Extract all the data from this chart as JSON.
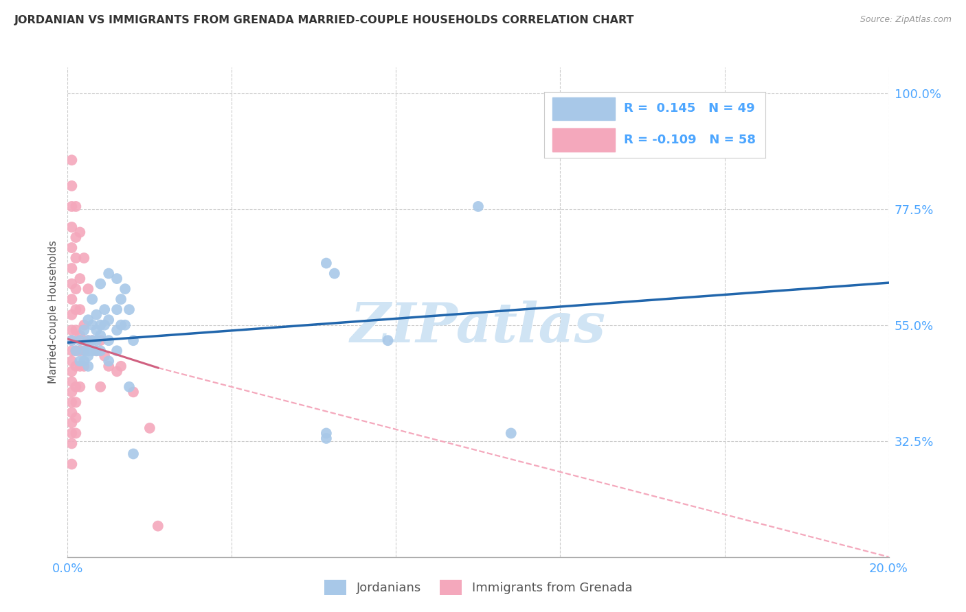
{
  "title": "JORDANIAN VS IMMIGRANTS FROM GRENADA MARRIED-COUPLE HOUSEHOLDS CORRELATION CHART",
  "source": "Source: ZipAtlas.com",
  "ylabel": "Married-couple Households",
  "xlim": [
    0.0,
    0.2
  ],
  "ylim": [
    0.1,
    1.05
  ],
  "yticks": [
    0.325,
    0.55,
    0.775,
    1.0
  ],
  "ytick_labels": [
    "32.5%",
    "55.0%",
    "77.5%",
    "100.0%"
  ],
  "xticks": [
    0.0,
    0.04,
    0.08,
    0.12,
    0.16,
    0.2
  ],
  "blue_R": 0.145,
  "blue_N": 49,
  "pink_R": -0.109,
  "pink_N": 58,
  "blue_color": "#a8c8e8",
  "pink_color": "#f4a8bc",
  "blue_line_color": "#2166ac",
  "pink_solid_color": "#d06080",
  "pink_dash_color": "#f4a8bc",
  "watermark": "ZIPatlas",
  "watermark_color": "#d0e4f4",
  "background_color": "#ffffff",
  "grid_color": "#cccccc",
  "title_color": "#333333",
  "axis_label_color": "#4da6ff",
  "legend_text_color": "#4da6ff",
  "legend_label_color": "#333333",
  "blue_scatter": [
    [
      0.001,
      0.52
    ],
    [
      0.002,
      0.5
    ],
    [
      0.003,
      0.52
    ],
    [
      0.003,
      0.48
    ],
    [
      0.004,
      0.54
    ],
    [
      0.004,
      0.5
    ],
    [
      0.004,
      0.48
    ],
    [
      0.005,
      0.56
    ],
    [
      0.005,
      0.52
    ],
    [
      0.005,
      0.5
    ],
    [
      0.005,
      0.49
    ],
    [
      0.005,
      0.47
    ],
    [
      0.006,
      0.6
    ],
    [
      0.006,
      0.55
    ],
    [
      0.006,
      0.52
    ],
    [
      0.006,
      0.5
    ],
    [
      0.007,
      0.57
    ],
    [
      0.007,
      0.54
    ],
    [
      0.007,
      0.52
    ],
    [
      0.007,
      0.5
    ],
    [
      0.008,
      0.63
    ],
    [
      0.008,
      0.55
    ],
    [
      0.008,
      0.53
    ],
    [
      0.008,
      0.5
    ],
    [
      0.009,
      0.58
    ],
    [
      0.009,
      0.55
    ],
    [
      0.01,
      0.65
    ],
    [
      0.01,
      0.56
    ],
    [
      0.01,
      0.52
    ],
    [
      0.01,
      0.48
    ],
    [
      0.012,
      0.64
    ],
    [
      0.012,
      0.58
    ],
    [
      0.012,
      0.54
    ],
    [
      0.012,
      0.5
    ],
    [
      0.013,
      0.6
    ],
    [
      0.013,
      0.55
    ],
    [
      0.014,
      0.62
    ],
    [
      0.014,
      0.55
    ],
    [
      0.015,
      0.58
    ],
    [
      0.015,
      0.43
    ],
    [
      0.016,
      0.52
    ],
    [
      0.016,
      0.3
    ],
    [
      0.063,
      0.67
    ],
    [
      0.063,
      0.34
    ],
    [
      0.063,
      0.33
    ],
    [
      0.065,
      0.65
    ],
    [
      0.1,
      0.78
    ],
    [
      0.108,
      0.34
    ],
    [
      0.078,
      0.52
    ]
  ],
  "pink_scatter": [
    [
      0.001,
      0.87
    ],
    [
      0.001,
      0.82
    ],
    [
      0.001,
      0.78
    ],
    [
      0.001,
      0.74
    ],
    [
      0.001,
      0.7
    ],
    [
      0.001,
      0.66
    ],
    [
      0.001,
      0.63
    ],
    [
      0.001,
      0.6
    ],
    [
      0.001,
      0.57
    ],
    [
      0.001,
      0.54
    ],
    [
      0.001,
      0.52
    ],
    [
      0.001,
      0.5
    ],
    [
      0.001,
      0.48
    ],
    [
      0.001,
      0.46
    ],
    [
      0.001,
      0.44
    ],
    [
      0.001,
      0.42
    ],
    [
      0.001,
      0.4
    ],
    [
      0.001,
      0.38
    ],
    [
      0.001,
      0.36
    ],
    [
      0.001,
      0.34
    ],
    [
      0.001,
      0.32
    ],
    [
      0.001,
      0.28
    ],
    [
      0.002,
      0.78
    ],
    [
      0.002,
      0.72
    ],
    [
      0.002,
      0.68
    ],
    [
      0.002,
      0.62
    ],
    [
      0.002,
      0.58
    ],
    [
      0.002,
      0.54
    ],
    [
      0.002,
      0.5
    ],
    [
      0.002,
      0.47
    ],
    [
      0.002,
      0.43
    ],
    [
      0.002,
      0.4
    ],
    [
      0.002,
      0.37
    ],
    [
      0.002,
      0.34
    ],
    [
      0.003,
      0.73
    ],
    [
      0.003,
      0.64
    ],
    [
      0.003,
      0.58
    ],
    [
      0.003,
      0.53
    ],
    [
      0.003,
      0.5
    ],
    [
      0.003,
      0.47
    ],
    [
      0.003,
      0.43
    ],
    [
      0.004,
      0.68
    ],
    [
      0.004,
      0.55
    ],
    [
      0.004,
      0.5
    ],
    [
      0.004,
      0.47
    ],
    [
      0.005,
      0.62
    ],
    [
      0.005,
      0.52
    ],
    [
      0.006,
      0.52
    ],
    [
      0.007,
      0.5
    ],
    [
      0.008,
      0.52
    ],
    [
      0.008,
      0.43
    ],
    [
      0.009,
      0.49
    ],
    [
      0.01,
      0.47
    ],
    [
      0.012,
      0.46
    ],
    [
      0.013,
      0.47
    ],
    [
      0.016,
      0.42
    ],
    [
      0.02,
      0.35
    ],
    [
      0.022,
      0.16
    ]
  ],
  "blue_line": {
    "x0": 0.0,
    "y0": 0.516,
    "x1": 0.2,
    "y1": 0.632
  },
  "pink_line_solid": {
    "x0": 0.0,
    "y0": 0.523,
    "x1": 0.022,
    "y1": 0.467
  },
  "pink_line_dash": {
    "x0": 0.022,
    "y0": 0.467,
    "x1": 0.2,
    "y1": 0.1
  }
}
